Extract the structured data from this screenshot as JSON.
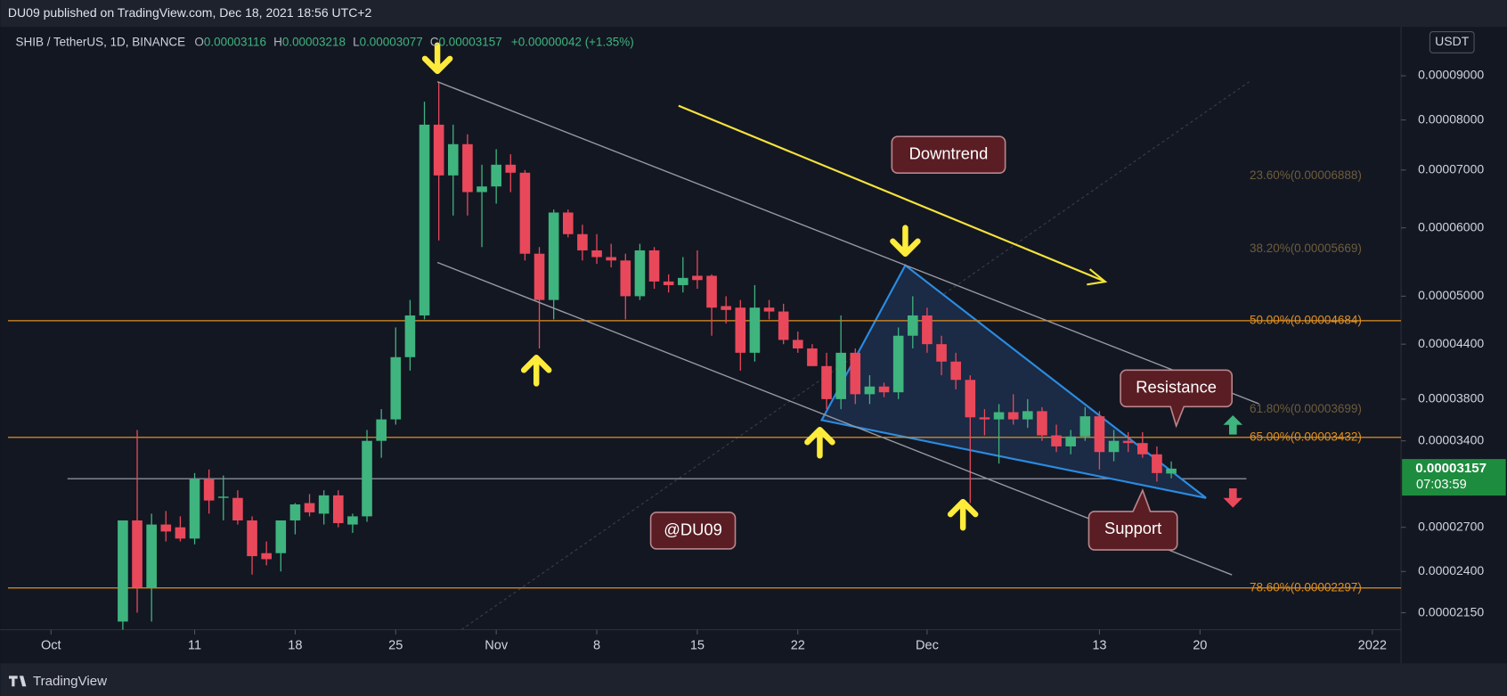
{
  "header": {
    "publisher": "DU09 published on TradingView.com, Dec 18, 2021 18:56 UTC+2"
  },
  "footer": {
    "brand": "TradingView"
  },
  "chart_data": {
    "type": "candlestick",
    "legend": {
      "symbol": "SHIB / TetherUS, 1D, BINANCE",
      "ohlc": [
        {
          "label": "O",
          "value": "0.00003116"
        },
        {
          "label": "H",
          "value": "0.00003218"
        },
        {
          "label": "L",
          "value": "0.00003077"
        },
        {
          "label": "C",
          "value": "0.00003157"
        }
      ],
      "change": "+0.00000042 (+1.35%)"
    },
    "currency": "USDT",
    "log_scale": true,
    "grid": false,
    "up_color": "#3fb47e",
    "down_color": "#e9485b",
    "x": [
      "2021-10-06",
      "2021-10-07",
      "2021-10-08",
      "2021-10-09",
      "2021-10-10",
      "2021-10-11",
      "2021-10-12",
      "2021-10-13",
      "2021-10-14",
      "2021-10-15",
      "2021-10-16",
      "2021-10-17",
      "2021-10-18",
      "2021-10-19",
      "2021-10-20",
      "2021-10-21",
      "2021-10-22",
      "2021-10-23",
      "2021-10-24",
      "2021-10-25",
      "2021-10-26",
      "2021-10-27",
      "2021-10-28",
      "2021-10-29",
      "2021-10-30",
      "2021-10-31",
      "2021-11-01",
      "2021-11-02",
      "2021-11-03",
      "2021-11-04",
      "2021-11-05",
      "2021-11-06",
      "2021-11-07",
      "2021-11-08",
      "2021-11-09",
      "2021-11-10",
      "2021-11-11",
      "2021-11-12",
      "2021-11-13",
      "2021-11-14",
      "2021-11-15",
      "2021-11-16",
      "2021-11-17",
      "2021-11-18",
      "2021-11-19",
      "2021-11-20",
      "2021-11-21",
      "2021-11-22",
      "2021-11-23",
      "2021-11-24",
      "2021-11-25",
      "2021-11-26",
      "2021-11-27",
      "2021-11-28",
      "2021-11-29",
      "2021-11-30",
      "2021-12-01",
      "2021-12-02",
      "2021-12-03",
      "2021-12-04",
      "2021-12-05",
      "2021-12-06",
      "2021-12-07",
      "2021-12-08",
      "2021-12-09",
      "2021-12-10",
      "2021-12-11",
      "2021-12-12",
      "2021-12-13",
      "2021-12-14",
      "2021-12-15",
      "2021-12-16",
      "2021-12-17",
      "2021-12-18"
    ],
    "open": [
      2.1e-05,
      2.75e-05,
      2.3e-05,
      2.72e-05,
      2.7e-05,
      2.62e-05,
      3.07e-05,
      2.92e-05,
      2.92e-05,
      2.75e-05,
      2.52e-05,
      2.52e-05,
      2.75e-05,
      2.88e-05,
      2.8e-05,
      2.94e-05,
      2.72e-05,
      2.78e-05,
      3.4e-05,
      3.6e-05,
      4.25e-05,
      4.75e-05,
      7.9e-05,
      6.9e-05,
      7.5e-05,
      6.6e-05,
      6.7e-05,
      7.1e-05,
      6.95e-05,
      5.6e-05,
      4.95e-05,
      6.25e-05,
      5.9e-05,
      5.65e-05,
      5.55e-05,
      5.5e-05,
      5e-05,
      5.65e-05,
      5.2e-05,
      5.15e-05,
      5.28e-05,
      5.28e-05,
      4.87e-05,
      4.85e-05,
      4.3e-05,
      4.85e-05,
      4.8e-05,
      4.45e-05,
      4.35e-05,
      4.15e-05,
      3.8e-05,
      4.3e-05,
      3.85e-05,
      3.93e-05,
      3.87e-05,
      4.5e-05,
      4.75e-05,
      4.4e-05,
      4.2e-05,
      4e-05,
      3.62e-05,
      3.6e-05,
      3.67e-05,
      3.6e-05,
      3.68e-05,
      3.45e-05,
      3.35e-05,
      3.44e-05,
      3.63e-05,
      3.3e-05,
      3.4e-05,
      3.38e-05,
      3.28e-05,
      3.116e-05
    ],
    "high": [
      2.75e-05,
      3.5e-05,
      2.8e-05,
      2.82e-05,
      2.78e-05,
      3.12e-05,
      3.15e-05,
      3.1e-05,
      2.98e-05,
      2.78e-05,
      2.6e-05,
      2.68e-05,
      2.88e-05,
      2.95e-05,
      2.98e-05,
      2.98e-05,
      2.8e-05,
      3.5e-05,
      3.7e-05,
      4.6e-05,
      4.95e-05,
      8.4e-05,
      8.85e-05,
      7.9e-05,
      7.7e-05,
      7.1e-05,
      7.4e-05,
      7.3e-05,
      7e-05,
      5.7e-05,
      6.3e-05,
      6.3e-05,
      6.05e-05,
      5.9e-05,
      5.75e-05,
      5.6e-05,
      5.75e-05,
      5.7e-05,
      5.3e-05,
      5.55e-05,
      5.65e-05,
      5.3e-05,
      5e-05,
      4.95e-05,
      5.15e-05,
      4.95e-05,
      4.9e-05,
      4.55e-05,
      4.4e-05,
      4.3e-05,
      4.75e-05,
      4.35e-05,
      4.05e-05,
      3.97e-05,
      4.6e-05,
      5e-05,
      4.85e-05,
      4.5e-05,
      4.3e-05,
      4.05e-05,
      3.7e-05,
      3.75e-05,
      3.85e-05,
      3.8e-05,
      3.72e-05,
      3.55e-05,
      3.5e-05,
      3.72e-05,
      3.68e-05,
      3.5e-05,
      3.48e-05,
      3.48e-05,
      3.35e-05,
      3.218e-05
    ],
    "low": [
      2e-05,
      2.15e-05,
      2.1e-05,
      2.6e-05,
      2.6e-05,
      2.58e-05,
      2.8e-05,
      2.75e-05,
      2.72e-05,
      2.38e-05,
      2.44e-05,
      2.4e-05,
      2.65e-05,
      2.78e-05,
      2.72e-05,
      2.7e-05,
      2.66e-05,
      2.74e-05,
      3.25e-05,
      3.55e-05,
      4.1e-05,
      4.7e-05,
      5.8e-05,
      6.2e-05,
      6.2e-05,
      5.7e-05,
      6.4e-05,
      6.6e-05,
      5.5e-05,
      4.35e-05,
      4.7e-05,
      5.85e-05,
      5.5e-05,
      5.45e-05,
      5.4e-05,
      4.7e-05,
      4.95e-05,
      5.1e-05,
      5.05e-05,
      5.05e-05,
      5.1e-05,
      4.5e-05,
      4.65e-05,
      4.1e-05,
      4.2e-05,
      4.7e-05,
      4.4e-05,
      4.3e-05,
      4.15e-05,
      3.7e-05,
      3.7e-05,
      3.75e-05,
      3.75e-05,
      3.82e-05,
      3.8e-05,
      4.35e-05,
      4.3e-05,
      4.05e-05,
      3.9e-05,
      2.88e-05,
      3.45e-05,
      3.2e-05,
      3.55e-05,
      3.52e-05,
      3.4e-05,
      3.3e-05,
      3.28e-05,
      3.4e-05,
      3.15e-05,
      3.22e-05,
      3.3e-05,
      3.25e-05,
      3.05e-05,
      3.077e-05
    ],
    "close": [
      2.75e-05,
      2.3e-05,
      2.72e-05,
      2.67e-05,
      2.62e-05,
      3.07e-05,
      2.9e-05,
      2.93e-05,
      2.75e-05,
      2.5e-05,
      2.48e-05,
      2.75e-05,
      2.87e-05,
      2.81e-05,
      2.94e-05,
      2.73e-05,
      2.78e-05,
      3.4e-05,
      3.6e-05,
      4.25e-05,
      4.75e-05,
      7.9e-05,
      6.9e-05,
      7.5e-05,
      6.6e-05,
      6.7e-05,
      7.1e-05,
      6.95e-05,
      5.6e-05,
      4.95e-05,
      6.25e-05,
      5.9e-05,
      5.65e-05,
      5.55e-05,
      5.5e-05,
      5e-05,
      5.65e-05,
      5.2e-05,
      5.15e-05,
      5.25e-05,
      5.22e-05,
      4.85e-05,
      4.82e-05,
      4.3e-05,
      4.85e-05,
      4.8e-05,
      4.45e-05,
      4.35e-05,
      4.15e-05,
      3.8e-05,
      4.3e-05,
      3.85e-05,
      3.93e-05,
      3.87e-05,
      4.5e-05,
      4.75e-05,
      4.4e-05,
      4.2e-05,
      4e-05,
      3.62e-05,
      3.6e-05,
      3.67e-05,
      3.6e-05,
      3.68e-05,
      3.45e-05,
      3.35e-05,
      3.44e-05,
      3.63e-05,
      3.3e-05,
      3.4e-05,
      3.38e-05,
      3.28e-05,
      3.12e-05,
      3.157e-05
    ],
    "xlim": [
      "2021-09-28",
      "2022-01-03"
    ],
    "xticks": [
      {
        "value": "2021-10-01",
        "label": "Oct"
      },
      {
        "value": "2021-10-11",
        "label": "11"
      },
      {
        "value": "2021-10-18",
        "label": "18"
      },
      {
        "value": "2021-10-25",
        "label": "25"
      },
      {
        "value": "2021-11-01",
        "label": "Nov"
      },
      {
        "value": "2021-11-08",
        "label": "8"
      },
      {
        "value": "2021-11-15",
        "label": "15"
      },
      {
        "value": "2021-11-22",
        "label": "22"
      },
      {
        "value": "2021-12-01",
        "label": "Dec"
      },
      {
        "value": "2021-12-13",
        "label": "13"
      },
      {
        "value": "2021-12-20",
        "label": "20"
      },
      {
        "value": "2022-01-01",
        "label": "2022"
      }
    ],
    "ylim": [
      2.055e-05,
      0.000102
    ],
    "yticks": [
      {
        "value": 9e-05,
        "label": "0.00009000"
      },
      {
        "value": 8e-05,
        "label": "0.00008000"
      },
      {
        "value": 7e-05,
        "label": "0.00007000"
      },
      {
        "value": 6e-05,
        "label": "0.00006000"
      },
      {
        "value": 5e-05,
        "label": "0.00005000"
      },
      {
        "value": 4.4e-05,
        "label": "0.00004400"
      },
      {
        "value": 3.8e-05,
        "label": "0.00003800"
      },
      {
        "value": 3.4e-05,
        "label": "0.00003400"
      },
      {
        "value": 2.7e-05,
        "label": "0.00002700"
      },
      {
        "value": 2.4e-05,
        "label": "0.00002400"
      },
      {
        "value": 2.15e-05,
        "label": "0.00002150"
      }
    ],
    "fib_levels": [
      {
        "value": 6.888e-05,
        "label": "23.60%(0.00006888)",
        "color": "#6e5c3c",
        "line": false
      },
      {
        "value": 5.669e-05,
        "label": "38.20%(0.00005669)",
        "color": "#6e5c3c",
        "line": false
      },
      {
        "value": 4.684e-05,
        "label": "50.00%(0.00004684)",
        "color": "#e0901f",
        "line": true
      },
      {
        "value": 3.699e-05,
        "label": "61.80%(0.00003699)",
        "color": "#6e5c3c",
        "line": false
      },
      {
        "value": 3.432e-05,
        "label": "65.00%(0.00003432)",
        "color": "#e0901f",
        "line": true
      },
      {
        "value": 2.297e-05,
        "label": "78.60%(0.00002297)",
        "color": "#e0901f",
        "line": true
      }
    ],
    "price_label": {
      "value": 3.157e-05,
      "label": "0.00003157",
      "countdown": "07:03:59",
      "color": "#1e8c3e"
    },
    "annotations": [
      "Downtrend",
      "Resistance",
      "Support",
      "@DU09"
    ]
  }
}
